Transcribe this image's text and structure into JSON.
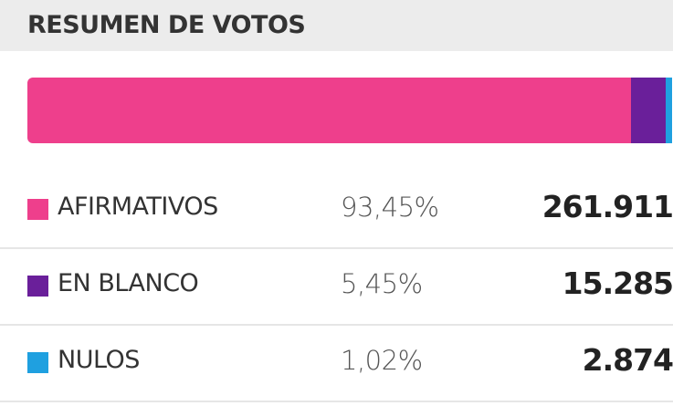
{
  "header": {
    "title": "RESUMEN DE VOTOS"
  },
  "rows": [
    {
      "label": "AFIRMATIVOS",
      "color": "#ee3f8c",
      "percent": 93.45,
      "percent_label": "93,45%",
      "votes": "261.911"
    },
    {
      "label": "EN BLANCO",
      "color": "#6a1f9a",
      "percent": 5.45,
      "percent_label": "5,45%",
      "votes": "15.285"
    },
    {
      "label": "NULOS",
      "color": "#1fa0e0",
      "percent": 1.02,
      "percent_label": "1,02%",
      "votes": "2.874"
    }
  ]
}
